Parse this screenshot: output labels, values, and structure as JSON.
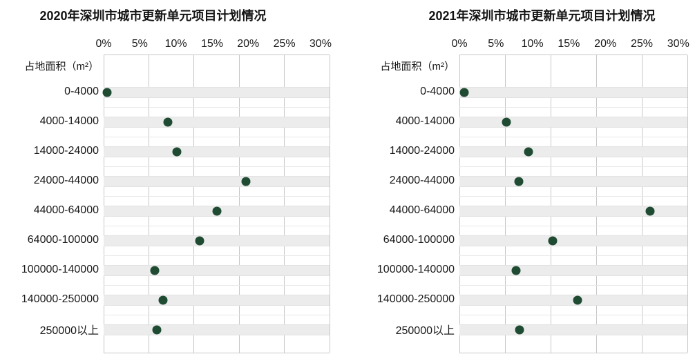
{
  "colors": {
    "dot": "#1f4b33",
    "stripe": "#ececec",
    "gridline": "#c6c6c6",
    "text": "#141414"
  },
  "chart_data": [
    {
      "type": "scatter",
      "title": "2020年深圳市城市更新单元项目计划情况",
      "ylabel": "占地面积（m²）",
      "xlabel": "",
      "x_ticks": [
        "0%",
        "5%",
        "10%",
        "15%",
        "20%",
        "25%",
        "30%"
      ],
      "x_tick_values": [
        0,
        5,
        10,
        15,
        20,
        25,
        30
      ],
      "xlim": [
        0,
        31.25
      ],
      "gridline_values": [
        0,
        6.25,
        12.5,
        18.75,
        25,
        31.25
      ],
      "grid": "on",
      "legend": "none",
      "categories": [
        "0-4000",
        "4000-14000",
        "14000-24000",
        "24000-44000",
        "44000-64000",
        "64000-100000",
        "100000-140000",
        "140000-250000",
        "250000以上"
      ],
      "values": [
        0.5,
        8.9,
        10.1,
        19.7,
        15.7,
        13.3,
        7.1,
        8.2,
        7.4
      ]
    },
    {
      "type": "scatter",
      "title": "2021年深圳市城市更新单元项目计划情况",
      "ylabel": "占地面积（m²）",
      "xlabel": "",
      "x_ticks": [
        "0%",
        "5%",
        "10%",
        "15%",
        "20%",
        "25%",
        "30%"
      ],
      "x_tick_values": [
        0,
        5,
        10,
        15,
        20,
        25,
        30
      ],
      "xlim": [
        0,
        31.25
      ],
      "gridline_values": [
        0,
        6.25,
        12.5,
        18.75,
        25,
        31.25
      ],
      "grid": "on",
      "legend": "none",
      "categories": [
        "0-4000",
        "4000-14000",
        "14000-24000",
        "24000-44000",
        "44000-64000",
        "64000-100000",
        "100000-140000",
        "140000-250000",
        "250000以上"
      ],
      "values": [
        0.7,
        6.4,
        9.5,
        8.1,
        26.1,
        12.8,
        7.8,
        16.2,
        8.2
      ]
    }
  ]
}
